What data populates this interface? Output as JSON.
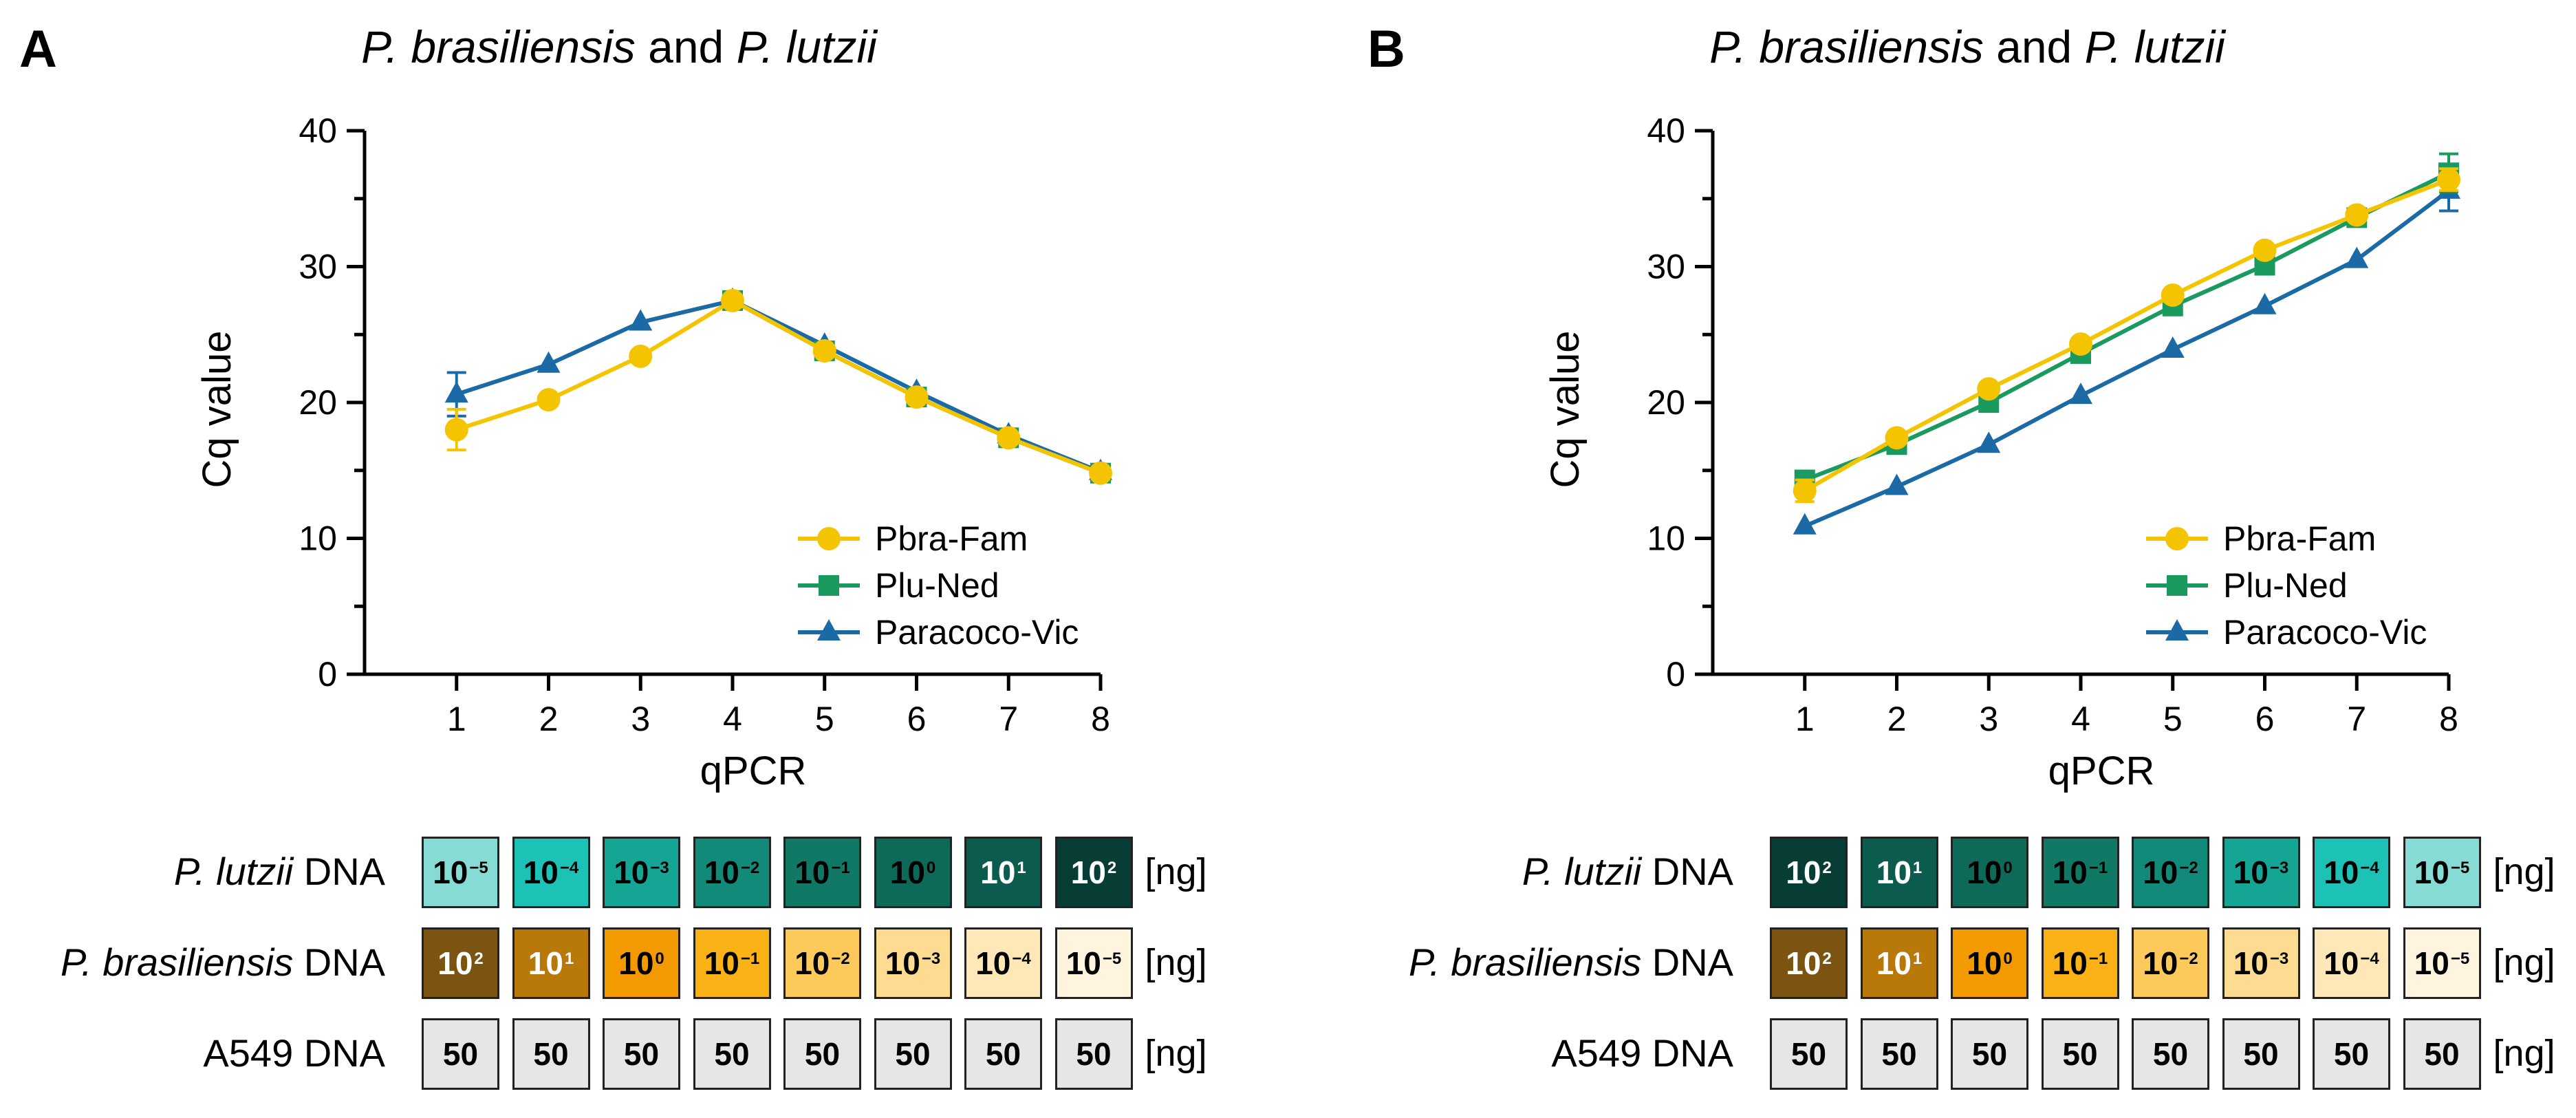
{
  "panels": [
    {
      "letter": "A",
      "title_species1": "P. brasiliensis",
      "title_and": "and",
      "title_species2": "P. lutzii",
      "chart_data": {
        "type": "line",
        "xlabel": "qPCR",
        "ylabel": "Cq value",
        "x": [
          1,
          2,
          3,
          4,
          5,
          6,
          7,
          8
        ],
        "xlim": [
          0,
          8
        ],
        "ylim": [
          0,
          40
        ],
        "yticks": [
          0,
          10,
          20,
          30,
          40
        ],
        "legend_position": "bottom-right",
        "series": [
          {
            "name": "Pbra-Fam",
            "color": "#f5c400",
            "marker": "circle",
            "values": [
              18.0,
              20.2,
              23.4,
              27.5,
              23.8,
              20.4,
              17.4,
              14.8
            ],
            "error": [
              1.5,
              0.3,
              0.3,
              0.4,
              0.3,
              0.3,
              0.3,
              0.3
            ]
          },
          {
            "name": "Plu-Ned",
            "color": "#1a9a5e",
            "marker": "square",
            "values": [
              null,
              null,
              null,
              27.5,
              23.8,
              20.4,
              17.4,
              14.8
            ],
            "error": [
              0,
              0,
              0,
              0.3,
              0.3,
              0.3,
              0.3,
              0.3
            ]
          },
          {
            "name": "Paracoco-Vic",
            "color": "#1b6aa5",
            "marker": "triangle",
            "values": [
              20.6,
              22.8,
              25.9,
              27.5,
              24.2,
              20.8,
              17.6,
              14.9
            ],
            "error": [
              1.6,
              0.3,
              0.3,
              0.4,
              0.3,
              0.3,
              0.3,
              0.3
            ]
          }
        ]
      },
      "rows": [
        {
          "label_italic": "P. lutzii",
          "label_rest": " DNA",
          "cells": [
            {
              "base": "10",
              "exp": "−5",
              "bg": "#86dcd4",
              "fg": "#000000"
            },
            {
              "base": "10",
              "exp": "−4",
              "bg": "#1cc2b6",
              "fg": "#000000"
            },
            {
              "base": "10",
              "exp": "−3",
              "bg": "#15a595",
              "fg": "#000000"
            },
            {
              "base": "10",
              "exp": "−2",
              "bg": "#128a7a",
              "fg": "#000000"
            },
            {
              "base": "10",
              "exp": "−1",
              "bg": "#0f7966",
              "fg": "#000000"
            },
            {
              "base": "10",
              "exp": "0",
              "bg": "#0d6a58",
              "fg": "#000000"
            },
            {
              "base": "10",
              "exp": "1",
              "bg": "#0b5c4f",
              "fg": "#ffffff"
            },
            {
              "base": "10",
              "exp": "2",
              "bg": "#073d34",
              "fg": "#ffffff"
            }
          ],
          "unit": "[ng]"
        },
        {
          "label_italic": "P. brasiliensis",
          "label_rest": " DNA",
          "cells": [
            {
              "base": "10",
              "exp": "2",
              "bg": "#7a5410",
              "fg": "#ffffff"
            },
            {
              "base": "10",
              "exp": "1",
              "bg": "#b8780a",
              "fg": "#ffffff"
            },
            {
              "base": "10",
              "exp": "0",
              "bg": "#f29a00",
              "fg": "#000000"
            },
            {
              "base": "10",
              "exp": "−1",
              "bg": "#fbb217",
              "fg": "#000000"
            },
            {
              "base": "10",
              "exp": "−2",
              "bg": "#fcc95a",
              "fg": "#000000"
            },
            {
              "base": "10",
              "exp": "−3",
              "bg": "#fddc92",
              "fg": "#000000"
            },
            {
              "base": "10",
              "exp": "−4",
              "bg": "#fee8b7",
              "fg": "#000000"
            },
            {
              "base": "10",
              "exp": "−5",
              "bg": "#fff5df",
              "fg": "#000000"
            }
          ],
          "unit": "[ng]"
        },
        {
          "label_italic": "",
          "label_rest": "A549 DNA",
          "cells": [
            {
              "base": "50",
              "exp": "",
              "bg": "#e6e6e6",
              "fg": "#000000"
            },
            {
              "base": "50",
              "exp": "",
              "bg": "#e6e6e6",
              "fg": "#000000"
            },
            {
              "base": "50",
              "exp": "",
              "bg": "#e6e6e6",
              "fg": "#000000"
            },
            {
              "base": "50",
              "exp": "",
              "bg": "#e6e6e6",
              "fg": "#000000"
            },
            {
              "base": "50",
              "exp": "",
              "bg": "#e6e6e6",
              "fg": "#000000"
            },
            {
              "base": "50",
              "exp": "",
              "bg": "#e6e6e6",
              "fg": "#000000"
            },
            {
              "base": "50",
              "exp": "",
              "bg": "#e6e6e6",
              "fg": "#000000"
            },
            {
              "base": "50",
              "exp": "",
              "bg": "#e6e6e6",
              "fg": "#000000"
            }
          ],
          "unit": "[ng]"
        }
      ]
    },
    {
      "letter": "B",
      "title_species1": "P. brasiliensis",
      "title_and": "and",
      "title_species2": "P. lutzii",
      "chart_data": {
        "type": "line",
        "xlabel": "qPCR",
        "ylabel": "Cq value",
        "x": [
          1,
          2,
          3,
          4,
          5,
          6,
          7,
          8
        ],
        "xlim": [
          0,
          8
        ],
        "ylim": [
          0,
          40
        ],
        "yticks": [
          0,
          10,
          20,
          30,
          40
        ],
        "legend_position": "bottom-right",
        "series": [
          {
            "name": "Pbra-Fam",
            "color": "#f5c400",
            "marker": "circle",
            "values": [
              13.5,
              17.4,
              21.0,
              24.3,
              27.9,
              31.2,
              33.8,
              36.4
            ],
            "error": [
              0.8,
              0.3,
              0.3,
              0.3,
              0.3,
              0.3,
              0.3,
              0.8
            ]
          },
          {
            "name": "Plu-Ned",
            "color": "#1a9a5e",
            "marker": "square",
            "values": [
              14.3,
              16.9,
              20.0,
              23.6,
              27.1,
              30.1,
              33.6,
              36.9
            ],
            "error": [
              0.4,
              0.3,
              0.3,
              0.3,
              0.3,
              0.3,
              0.3,
              1.4
            ]
          },
          {
            "name": "Paracoco-Vic",
            "color": "#1b6aa5",
            "marker": "triangle",
            "values": [
              10.9,
              13.8,
              16.9,
              20.5,
              23.9,
              27.1,
              30.5,
              35.6
            ],
            "error": [
              0.3,
              0.3,
              0.3,
              0.3,
              0.3,
              0.3,
              0.3,
              1.5
            ]
          }
        ]
      },
      "rows": [
        {
          "label_italic": "P. lutzii",
          "label_rest": " DNA",
          "cells": [
            {
              "base": "10",
              "exp": "2",
              "bg": "#073d34",
              "fg": "#ffffff"
            },
            {
              "base": "10",
              "exp": "1",
              "bg": "#0b5c4f",
              "fg": "#ffffff"
            },
            {
              "base": "10",
              "exp": "0",
              "bg": "#0d6a58",
              "fg": "#000000"
            },
            {
              "base": "10",
              "exp": "−1",
              "bg": "#0f7966",
              "fg": "#000000"
            },
            {
              "base": "10",
              "exp": "−2",
              "bg": "#128a7a",
              "fg": "#000000"
            },
            {
              "base": "10",
              "exp": "−3",
              "bg": "#15a595",
              "fg": "#000000"
            },
            {
              "base": "10",
              "exp": "−4",
              "bg": "#1cc2b6",
              "fg": "#000000"
            },
            {
              "base": "10",
              "exp": "−5",
              "bg": "#86dcd4",
              "fg": "#000000"
            }
          ],
          "unit": "[ng]"
        },
        {
          "label_italic": "P. brasiliensis",
          "label_rest": " DNA",
          "cells": [
            {
              "base": "10",
              "exp": "2",
              "bg": "#7a5410",
              "fg": "#ffffff"
            },
            {
              "base": "10",
              "exp": "1",
              "bg": "#b8780a",
              "fg": "#ffffff"
            },
            {
              "base": "10",
              "exp": "0",
              "bg": "#f29a00",
              "fg": "#000000"
            },
            {
              "base": "10",
              "exp": "−1",
              "bg": "#fbb217",
              "fg": "#000000"
            },
            {
              "base": "10",
              "exp": "−2",
              "bg": "#fcc95a",
              "fg": "#000000"
            },
            {
              "base": "10",
              "exp": "−3",
              "bg": "#fddc92",
              "fg": "#000000"
            },
            {
              "base": "10",
              "exp": "−4",
              "bg": "#fee8b7",
              "fg": "#000000"
            },
            {
              "base": "10",
              "exp": "−5",
              "bg": "#fff5df",
              "fg": "#000000"
            }
          ],
          "unit": "[ng]"
        },
        {
          "label_italic": "",
          "label_rest": "A549 DNA",
          "cells": [
            {
              "base": "50",
              "exp": "",
              "bg": "#e6e6e6",
              "fg": "#000000"
            },
            {
              "base": "50",
              "exp": "",
              "bg": "#e6e6e6",
              "fg": "#000000"
            },
            {
              "base": "50",
              "exp": "",
              "bg": "#e6e6e6",
              "fg": "#000000"
            },
            {
              "base": "50",
              "exp": "",
              "bg": "#e6e6e6",
              "fg": "#000000"
            },
            {
              "base": "50",
              "exp": "",
              "bg": "#e6e6e6",
              "fg": "#000000"
            },
            {
              "base": "50",
              "exp": "",
              "bg": "#e6e6e6",
              "fg": "#000000"
            },
            {
              "base": "50",
              "exp": "",
              "bg": "#e6e6e6",
              "fg": "#000000"
            },
            {
              "base": "50",
              "exp": "",
              "bg": "#e6e6e6",
              "fg": "#000000"
            }
          ],
          "unit": "[ng]"
        }
      ]
    }
  ]
}
